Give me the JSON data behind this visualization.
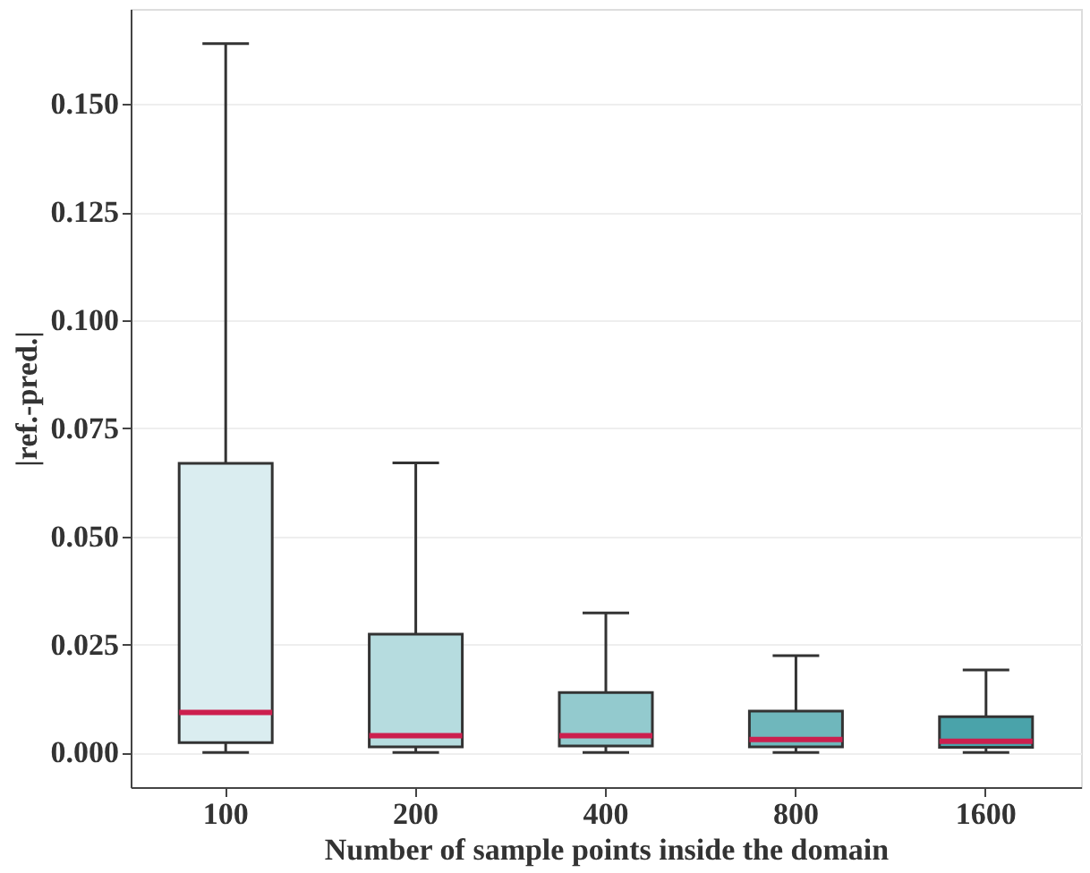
{
  "chart_data": {
    "type": "box",
    "xlabel": "Number of sample points inside the domain",
    "ylabel": "|ref.-pred.|",
    "categories": [
      "100",
      "200",
      "400",
      "800",
      "1600"
    ],
    "boxes": [
      {
        "low": 0.0,
        "q1": 0.0023,
        "median": 0.0093,
        "q3": 0.0669,
        "high": 0.164
      },
      {
        "low": 0.0,
        "q1": 0.0013,
        "median": 0.0039,
        "q3": 0.0274,
        "high": 0.067
      },
      {
        "low": 0.0,
        "q1": 0.0015,
        "median": 0.0039,
        "q3": 0.0139,
        "high": 0.0323
      },
      {
        "low": 0.0,
        "q1": 0.0013,
        "median": 0.003,
        "q3": 0.0096,
        "high": 0.0224
      },
      {
        "low": 0.0,
        "q1": 0.0012,
        "median": 0.0026,
        "q3": 0.0083,
        "high": 0.0191
      }
    ],
    "colors": [
      "#daedf0",
      "#b6dcdf",
      "#93cace",
      "#6fb7bc",
      "#4aa3aa"
    ],
    "ylim": [
      -0.008,
      0.172
    ],
    "yticks": [
      {
        "value": 0,
        "label": "0.000"
      },
      {
        "value": 0.025,
        "label": "0.025"
      },
      {
        "value": 0.05,
        "label": "0.050"
      },
      {
        "value": 0.075,
        "label": "0.075"
      },
      {
        "value": 0.1,
        "label": "0.100"
      },
      {
        "value": 0.125,
        "label": "0.125"
      },
      {
        "value": 0.15,
        "label": "0.150"
      }
    ],
    "grid": "y"
  }
}
